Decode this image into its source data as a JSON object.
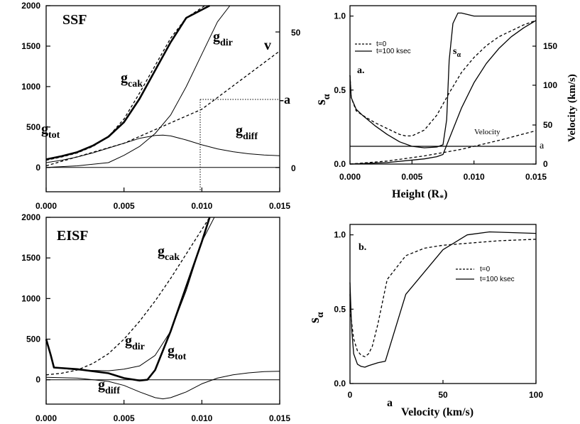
{
  "chart_data": [
    {
      "id": "ssf",
      "type": "line",
      "title": "SSF",
      "xlim": [
        0,
        0.015
      ],
      "ylim": [
        -300,
        2000
      ],
      "x_ticks": [
        "0.000",
        "0.005",
        "0.010",
        "0.015"
      ],
      "y_ticks": [
        "0",
        "500",
        "1000",
        "1500",
        "2000"
      ],
      "y2_ticks": [
        "0",
        "50"
      ],
      "labels": {
        "cak": "g",
        "cak_sub": "cak",
        "dir": "g",
        "dir_sub": "dir",
        "tot": "g",
        "tot_sub": "tot",
        "diff": "g",
        "diff_sub": "diff",
        "v": "v",
        "a": "-a"
      },
      "series": [
        {
          "name": "g_tot",
          "style": "thick",
          "x": [
            0,
            0.001,
            0.002,
            0.003,
            0.004,
            0.005,
            0.006,
            0.007,
            0.008,
            0.009,
            0.0105
          ],
          "values": [
            100,
            140,
            190,
            270,
            380,
            560,
            850,
            1200,
            1550,
            1850,
            2000
          ]
        },
        {
          "name": "g_cak",
          "style": "dashed",
          "x": [
            0,
            0.001,
            0.002,
            0.003,
            0.004,
            0.005,
            0.006,
            0.007,
            0.008,
            0.009,
            0.0102
          ],
          "values": [
            90,
            130,
            180,
            260,
            380,
            600,
            920,
            1260,
            1600,
            1850,
            2000
          ]
        },
        {
          "name": "g_dir",
          "style": "thin",
          "x": [
            0,
            0.002,
            0.004,
            0.005,
            0.006,
            0.007,
            0.008,
            0.009,
            0.01,
            0.011,
            0.0118
          ],
          "values": [
            0,
            20,
            60,
            150,
            260,
            420,
            650,
            1000,
            1400,
            1800,
            2000
          ]
        },
        {
          "name": "g_diff",
          "style": "thin",
          "x": [
            0,
            0.001,
            0.002,
            0.003,
            0.004,
            0.005,
            0.006,
            0.007,
            0.0075,
            0.008,
            0.009,
            0.01,
            0.011,
            0.012,
            0.013,
            0.014,
            0.015
          ],
          "values": [
            60,
            90,
            130,
            180,
            240,
            300,
            360,
            395,
            400,
            390,
            340,
            280,
            230,
            195,
            170,
            155,
            145
          ]
        },
        {
          "name": "v",
          "style": "dashed",
          "x": [
            0,
            0.005,
            0.01,
            0.015
          ],
          "values": [
            20,
            300,
            720,
            1440
          ]
        },
        {
          "name": "zero-line",
          "style": "thin",
          "x": [
            0,
            0.015
          ],
          "values": [
            0,
            0
          ]
        }
      ],
      "marker": {
        "x": 0.0101,
        "y": 720
      }
    },
    {
      "id": "eisf",
      "type": "line",
      "title": "EISF",
      "xlim": [
        0,
        0.015
      ],
      "ylim": [
        -300,
        2000
      ],
      "x_ticks": [
        "0.000",
        "0.005",
        "0.010",
        "0.015"
      ],
      "y_ticks": [
        "0",
        "500",
        "1000",
        "1500",
        "2000"
      ],
      "labels": {
        "cak": "g",
        "cak_sub": "cak",
        "dir": "g",
        "dir_sub": "dir",
        "tot": "g",
        "tot_sub": "tot",
        "diff": "g",
        "diff_sub": "diff"
      },
      "series": [
        {
          "name": "g_cak",
          "style": "dashed",
          "x": [
            0,
            0.001,
            0.002,
            0.003,
            0.004,
            0.005,
            0.006,
            0.007,
            0.008,
            0.009,
            0.01,
            0.0105
          ],
          "values": [
            60,
            80,
            120,
            200,
            320,
            500,
            720,
            970,
            1250,
            1550,
            1850,
            2000
          ]
        },
        {
          "name": "g_dir",
          "style": "thin",
          "x": [
            0,
            0.0003,
            0.0005,
            0.002,
            0.004,
            0.005,
            0.006,
            0.007,
            0.008,
            0.009,
            0.01,
            0.0108
          ],
          "values": [
            500,
            300,
            150,
            120,
            110,
            130,
            170,
            300,
            600,
            1100,
            1700,
            2000
          ]
        },
        {
          "name": "g_tot",
          "style": "thick",
          "x": [
            0,
            0.0003,
            0.0005,
            0.002,
            0.004,
            0.005,
            0.006,
            0.0065,
            0.007,
            0.008,
            0.009,
            0.01,
            0.0105
          ],
          "values": [
            500,
            300,
            150,
            130,
            80,
            20,
            -10,
            0,
            120,
            600,
            1150,
            1700,
            2000
          ]
        },
        {
          "name": "g_diff",
          "style": "thin",
          "x": [
            0,
            0.002,
            0.004,
            0.005,
            0.006,
            0.007,
            0.0075,
            0.008,
            0.009,
            0.01,
            0.011,
            0.012,
            0.013,
            0.014,
            0.015
          ],
          "values": [
            30,
            20,
            -20,
            -70,
            -150,
            -220,
            -235,
            -220,
            -150,
            -50,
            20,
            60,
            85,
            100,
            105
          ]
        },
        {
          "name": "zero-line",
          "style": "thin",
          "x": [
            0,
            0.015
          ],
          "values": [
            0,
            0
          ]
        }
      ]
    },
    {
      "id": "panel-a",
      "type": "line",
      "panel_label": "a.",
      "xlabel": "Height (R",
      "xlabel_sub": "*",
      "xlabel_end": ")",
      "ylabel": "s",
      "ylabel_sub": "α",
      "y2label": "Velocity (km/s)",
      "xlim": [
        0,
        0.015
      ],
      "ylim": [
        0,
        1.07
      ],
      "x_ticks": [
        "0.000",
        "0.005",
        "0.010",
        "0.015"
      ],
      "y_ticks": [
        "0.0",
        "0.5",
        "1.0"
      ],
      "y2_ticks": [
        "0",
        "50",
        "100",
        "150"
      ],
      "curve_labels": {
        "s_alpha": "s",
        "s_alpha_sub": "α",
        "velocity": "Velocity",
        "a": "a"
      },
      "legend": [
        "t=0",
        "t=100 ksec"
      ],
      "series": [
        {
          "name": "t=0",
          "style": "dashed",
          "x": [
            0,
            0.0001,
            0.0005,
            0.001,
            0.002,
            0.003,
            0.004,
            0.0045,
            0.005,
            0.006,
            0.007,
            0.008,
            0.009,
            0.01,
            0.011,
            0.012,
            0.013,
            0.014,
            0.015
          ],
          "values": [
            0.6,
            0.45,
            0.36,
            0.33,
            0.28,
            0.24,
            0.2,
            0.19,
            0.19,
            0.23,
            0.33,
            0.48,
            0.62,
            0.72,
            0.8,
            0.86,
            0.9,
            0.94,
            0.97
          ]
        },
        {
          "name": "t=100 ksec",
          "style": "solid",
          "x": [
            0,
            0.0001,
            0.0005,
            0.001,
            0.002,
            0.003,
            0.004,
            0.005,
            0.006,
            0.007,
            0.0075,
            0.0078,
            0.008,
            0.0083,
            0.0087,
            0.009,
            0.01,
            0.012,
            0.015
          ],
          "values": [
            0.6,
            0.45,
            0.37,
            0.33,
            0.26,
            0.2,
            0.15,
            0.12,
            0.11,
            0.115,
            0.13,
            0.3,
            0.7,
            0.95,
            1.02,
            1.02,
            1.0,
            1.0,
            1.0
          ]
        },
        {
          "name": "velocity-t0",
          "style": "dashed",
          "x": [
            0,
            0.003,
            0.006,
            0.009,
            0.012,
            0.015
          ],
          "values": [
            0,
            0.02,
            0.055,
            0.1,
            0.16,
            0.225
          ]
        },
        {
          "name": "velocity-t100",
          "style": "solid",
          "x": [
            0,
            0.003,
            0.006,
            0.007,
            0.0075,
            0.008,
            0.009,
            0.01,
            0.011,
            0.012,
            0.013,
            0.014,
            0.015
          ],
          "values": [
            0,
            0.01,
            0.035,
            0.05,
            0.065,
            0.17,
            0.38,
            0.55,
            0.68,
            0.78,
            0.86,
            0.92,
            0.97
          ]
        },
        {
          "name": "a-line",
          "style": "solid",
          "x": [
            0,
            0.015
          ],
          "values": [
            0.12,
            0.12
          ]
        }
      ]
    },
    {
      "id": "panel-b",
      "type": "line",
      "panel_label": "b.",
      "xlabel": "Velocity (km/s)",
      "ylabel": "s",
      "ylabel_sub": "α",
      "xlim": [
        0,
        100
      ],
      "ylim": [
        0,
        1.07
      ],
      "x_ticks": [
        "0",
        "50",
        "100"
      ],
      "x_extra_label": "a",
      "y_ticks": [
        "0.0",
        "0.5",
        "1.0"
      ],
      "legend": [
        "t=0",
        "t=100 ksec"
      ],
      "series": [
        {
          "name": "t=0",
          "style": "dashed",
          "x": [
            0,
            0.5,
            2,
            4,
            6,
            8,
            10,
            12,
            15,
            20,
            30,
            40,
            50,
            60,
            80,
            100
          ],
          "values": [
            0.6,
            0.45,
            0.3,
            0.22,
            0.19,
            0.18,
            0.2,
            0.25,
            0.4,
            0.7,
            0.86,
            0.91,
            0.93,
            0.94,
            0.96,
            0.97
          ]
        },
        {
          "name": "t=100 ksec",
          "style": "solid",
          "x": [
            0,
            0.5,
            1,
            2,
            4,
            6,
            8,
            10,
            15,
            19,
            30,
            50,
            63,
            75,
            100
          ],
          "values": [
            0.68,
            0.5,
            0.35,
            0.2,
            0.13,
            0.115,
            0.11,
            0.12,
            0.14,
            0.15,
            0.6,
            0.9,
            1.0,
            1.02,
            1.01
          ]
        }
      ]
    }
  ]
}
